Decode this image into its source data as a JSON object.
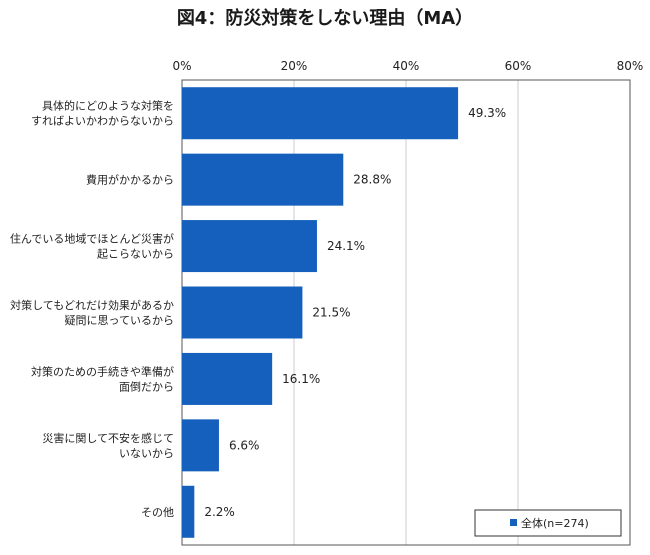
{
  "chart_data": {
    "type": "bar",
    "orientation": "horizontal",
    "title": "図4：防災対策をしない理由（MA）",
    "categories": [
      [
        "具体的にどのような対策を",
        "すればよいかわからないから"
      ],
      [
        "費用がかかるから"
      ],
      [
        "住んでいる地域でほとんど災害が",
        "起こらないから"
      ],
      [
        "対策してもどれだけ効果があるか",
        "疑問に思っているから"
      ],
      [
        "対策のための手続きや準備が",
        "面倒だから"
      ],
      [
        "災害に関して不安を感じて",
        "いないから"
      ],
      [
        "その他"
      ]
    ],
    "values": [
      49.3,
      28.8,
      24.1,
      21.5,
      16.1,
      6.6,
      2.2
    ],
    "value_labels": [
      "49.3%",
      "28.8%",
      "24.1%",
      "21.5%",
      "16.1%",
      "6.6%",
      "2.2%"
    ],
    "xlim": [
      0,
      80
    ],
    "xticks": [
      0,
      20,
      40,
      60,
      80
    ],
    "xtick_labels": [
      "0%",
      "20%",
      "40%",
      "60%",
      "80%"
    ],
    "grid": true,
    "legend": {
      "placement": "bottom-right",
      "label": "全体(n=274)"
    },
    "colors": {
      "bar": "#1560bd",
      "grid": "#cccccc",
      "frame": "#555555"
    }
  }
}
